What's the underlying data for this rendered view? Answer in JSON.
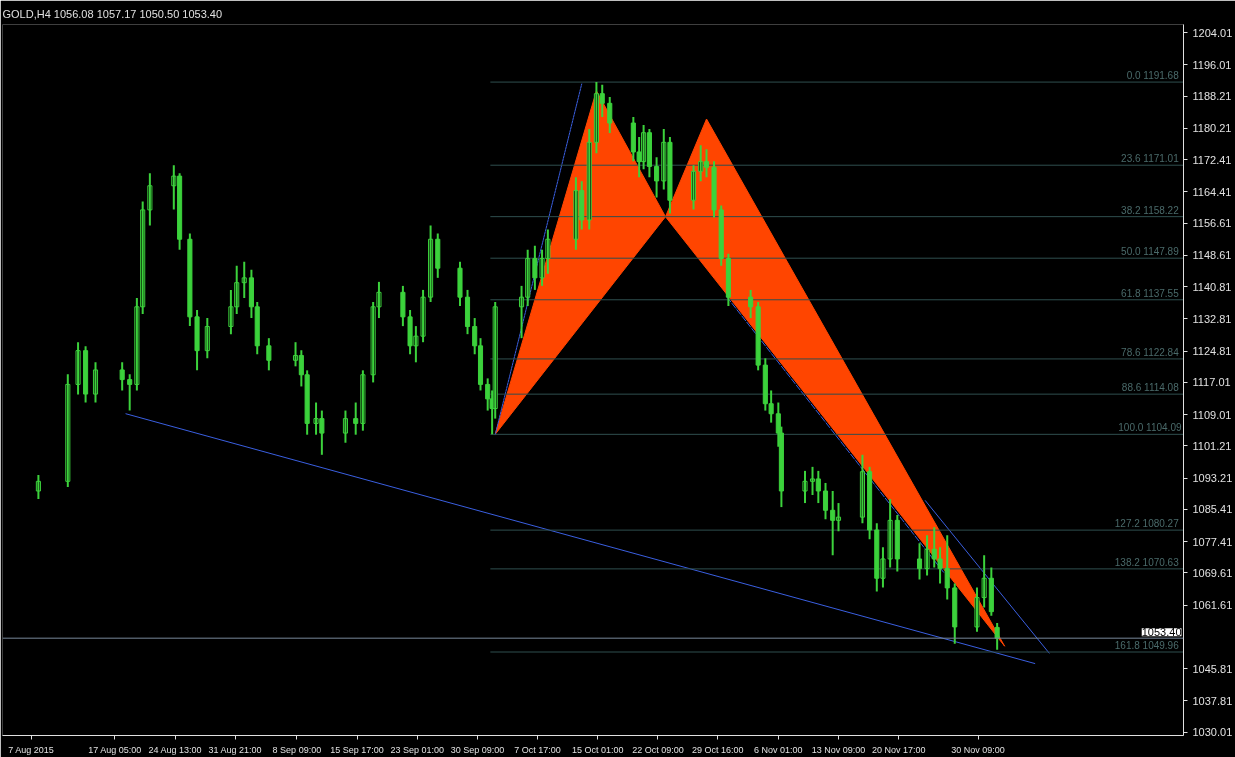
{
  "chart_data": {
    "type": "candlestick",
    "title": "GOLD,H4  1056.08 1057.17 1050.50 1053.40",
    "xlim": [
      "2015-08-03T12:00",
      "2015-12-25T10:00"
    ],
    "ylim": [
      1029.2,
      1206
    ],
    "xticks": [
      {
        "value": "2015-08-07T00:00",
        "label": "7 Aug 2015"
      },
      {
        "value": "2015-08-17T05:00",
        "label": "17 Aug 05:00"
      },
      {
        "value": "2015-08-24T13:00",
        "label": "24 Aug 13:00"
      },
      {
        "value": "2015-08-31T21:00",
        "label": "31 Aug 21:00"
      },
      {
        "value": "2015-09-08T09:00",
        "label": "8 Sep 09:00"
      },
      {
        "value": "2015-09-15T17:00",
        "label": "15 Sep 17:00"
      },
      {
        "value": "2015-09-23T01:00",
        "label": "23 Sep 01:00"
      },
      {
        "value": "2015-09-30T09:00",
        "label": "30 Sep 09:00"
      },
      {
        "value": "2015-10-07T17:00",
        "label": "7 Oct 17:00"
      },
      {
        "value": "2015-10-15T01:00",
        "label": "15 Oct 01:00"
      },
      {
        "value": "2015-10-22T09:00",
        "label": "22 Oct 09:00"
      },
      {
        "value": "2015-10-29T16:00",
        "label": "29 Oct 16:00"
      },
      {
        "value": "2015-11-06T01:00",
        "label": "6 Nov 01:00"
      },
      {
        "value": "2015-11-13T09:00",
        "label": "13 Nov 09:00"
      },
      {
        "value": "2015-11-20T17:00",
        "label": "20 Nov 17:00"
      },
      {
        "value": "2015-11-30T09:00",
        "label": "30 Nov 09:00"
      }
    ],
    "yticks": [
      1030.01,
      1037.81,
      1045.81,
      1061.61,
      1069.61,
      1077.41,
      1085.41,
      1093.21,
      1101.21,
      1109.01,
      1117.01,
      1124.81,
      1132.81,
      1140.81,
      1148.61,
      1156.61,
      1164.41,
      1172.41,
      1180.21,
      1188.21,
      1196.01,
      1204.01
    ],
    "grid": false,
    "color": "#3cd23c",
    "ref_lines": [
      {
        "axis": "y",
        "value": 1053.4,
        "label": "1053.40",
        "color": "#778899"
      }
    ],
    "x": [
      "2015-08-07T21:00",
      "2015-08-11T11:00",
      "2015-08-12T17:00",
      "2015-08-13T15:00",
      "2015-08-14T20:00",
      "2015-08-18T02:00",
      "2015-08-19T00:00",
      "2015-08-19T21:00",
      "2015-08-20T14:00",
      "2015-08-21T11:00",
      "2015-08-24T09:00",
      "2015-08-25T02:00",
      "2015-08-26T08:00",
      "2015-08-27T05:00",
      "2015-08-28T11:00",
      "2015-08-31T08:00",
      "2015-09-01T01:00",
      "2015-09-01T23:00",
      "2015-09-02T20:00",
      "2015-09-03T13:00",
      "2015-09-04T23:00",
      "2015-09-08T05:00",
      "2015-09-08T22:00",
      "2015-09-09T15:00",
      "2015-09-10T17:00",
      "2015-09-11T10:00",
      "2015-09-14T07:00",
      "2015-09-15T13:00",
      "2015-09-16T10:00",
      "2015-09-17T16:00",
      "2015-09-18T09:00",
      "2015-09-21T07:00",
      "2015-09-22T04:00",
      "2015-09-22T21:00",
      "2015-09-23T18:00",
      "2015-09-24T16:00",
      "2015-09-25T13:00",
      "2015-09-28T06:00",
      "2015-09-29T04:00",
      "2015-09-30T01:00",
      "2015-09-30T18:00",
      "2015-10-01T15:00",
      "2015-10-02T04:00",
      "2015-10-02T13:00",
      "2015-10-05T18:00",
      "2015-10-06T12:00",
      "2015-10-07T09:00",
      "2015-10-08T06:00",
      "2015-10-08T23:00",
      "2015-10-12T09:00",
      "2015-10-13T02:00",
      "2015-10-14T00:00",
      "2015-10-14T21:00",
      "2015-10-15T14:00",
      "2015-10-16T12:00",
      "2015-10-19T09:00",
      "2015-10-20T02:00",
      "2015-10-20T15:00",
      "2015-10-21T08:00",
      "2015-10-22T05:00",
      "2015-10-23T02:00",
      "2015-10-23T20:00",
      "2015-10-26T17:00",
      "2015-10-27T14:00",
      "2015-10-28T07:00",
      "2015-10-29T05:00",
      "2015-10-30T02:00",
      "2015-10-30T23:00",
      "2015-11-02T16:00",
      "2015-11-03T14:00",
      "2015-11-04T11:00",
      "2015-11-05T04:00",
      "2015-11-06T01:00",
      "2015-11-06T10:00",
      "2015-11-09T07:00",
      "2015-11-10T05:00",
      "2015-11-10T22:00",
      "2015-11-11T19:00",
      "2015-11-12T16:00",
      "2015-11-13T09:00",
      "2015-11-16T07:00",
      "2015-11-17T04:00",
      "2015-11-18T01:00",
      "2015-11-18T19:00",
      "2015-11-19T16:00",
      "2015-11-20T13:00",
      "2015-11-23T06:00",
      "2015-11-24T04:00",
      "2015-11-25T01:00",
      "2015-11-25T18:00",
      "2015-11-26T15:00",
      "2015-11-27T13:00",
      "2015-11-30T06:00",
      "2015-12-01T03:00",
      "2015-12-02T00:00",
      "2015-12-02T17:00"
    ],
    "ohlc": [
      [
        1090,
        1094,
        1088,
        1092.4
      ],
      [
        1092.4,
        1119,
        1091,
        1116.5
      ],
      [
        1116.5,
        1127,
        1114,
        1124.9
      ],
      [
        1124.9,
        1126,
        1112,
        1114.1
      ],
      [
        1114.1,
        1122,
        1112,
        1120.1
      ],
      [
        1120.1,
        1122,
        1115,
        1117.7
      ],
      [
        1117.7,
        1119,
        1110,
        1116.5
      ],
      [
        1116.5,
        1138,
        1115,
        1135.8
      ],
      [
        1135.8,
        1162,
        1134,
        1159.9
      ],
      [
        1159.9,
        1169,
        1156,
        1165.9
      ],
      [
        1165.9,
        1171,
        1160,
        1168.3
      ],
      [
        1168.3,
        1169,
        1150,
        1152.6
      ],
      [
        1152.6,
        1154,
        1131,
        1133.3
      ],
      [
        1133.3,
        1135,
        1120,
        1124.9
      ],
      [
        1124.9,
        1133,
        1123,
        1130.9
      ],
      [
        1130.9,
        1140,
        1129,
        1135.8
      ],
      [
        1135.8,
        1146,
        1134,
        1141.8
      ],
      [
        1141.8,
        1147,
        1138,
        1143.0
      ],
      [
        1143.0,
        1145,
        1133,
        1135.8
      ],
      [
        1135.8,
        1137,
        1124,
        1126.1
      ],
      [
        1126.1,
        1128,
        1120,
        1122.5
      ],
      [
        1122.5,
        1127,
        1121,
        1123.7
      ],
      [
        1123.7,
        1125,
        1116,
        1118.9
      ],
      [
        1118.9,
        1120,
        1104,
        1106.8
      ],
      [
        1106.8,
        1112,
        1104,
        1108.0
      ],
      [
        1108.0,
        1110,
        1099,
        1104.4
      ],
      [
        1104.4,
        1110,
        1102,
        1108.0
      ],
      [
        1108.0,
        1112,
        1104,
        1106.8
      ],
      [
        1106.8,
        1120,
        1105,
        1118.9
      ],
      [
        1118.9,
        1137,
        1117,
        1135.8
      ],
      [
        1135.8,
        1142,
        1133,
        1139.4
      ],
      [
        1139.4,
        1141,
        1131,
        1133.3
      ],
      [
        1133.3,
        1135,
        1124,
        1126.1
      ],
      [
        1126.1,
        1131,
        1122,
        1128.5
      ],
      [
        1128.5,
        1140,
        1127,
        1138.2
      ],
      [
        1138.2,
        1156,
        1137,
        1152.6
      ],
      [
        1152.6,
        1154,
        1143,
        1145.4
      ],
      [
        1145.4,
        1147,
        1136,
        1138.2
      ],
      [
        1138.2,
        1140,
        1129,
        1130.9
      ],
      [
        1130.9,
        1133,
        1124,
        1126.1
      ],
      [
        1126.1,
        1128,
        1115,
        1116.5
      ],
      [
        1116.5,
        1118,
        1110,
        1112.9
      ],
      [
        1112.9,
        1115,
        1104.1,
        1110.5
      ],
      [
        1110.5,
        1137,
        1108,
        1135.8
      ],
      [
        1135.8,
        1141,
        1128,
        1138.2
      ],
      [
        1138.2,
        1150,
        1136,
        1147.8
      ],
      [
        1147.8,
        1151,
        1140,
        1143.0
      ],
      [
        1143.0,
        1150,
        1141,
        1147.8
      ],
      [
        1147.8,
        1155,
        1144,
        1152.6
      ],
      [
        1152.6,
        1168,
        1150,
        1164.7
      ],
      [
        1164.7,
        1167,
        1155,
        1157.4
      ],
      [
        1157.4,
        1180,
        1155,
        1176.7
      ],
      [
        1176.7,
        1191.7,
        1174,
        1188.8
      ],
      [
        1188.8,
        1191,
        1183,
        1186.4
      ],
      [
        1186.4,
        1188,
        1179,
        1181.5
      ],
      [
        1181.5,
        1183,
        1172,
        1174.3
      ],
      [
        1174.3,
        1178,
        1168,
        1171.9
      ],
      [
        1171.9,
        1181,
        1170,
        1179.1
      ],
      [
        1179.1,
        1180,
        1168,
        1170.7
      ],
      [
        1170.7,
        1173,
        1163,
        1167.1
      ],
      [
        1167.1,
        1180,
        1165,
        1176.7
      ],
      [
        1176.7,
        1178,
        1159,
        1162.3
      ],
      [
        1162.3,
        1171,
        1160,
        1169.5
      ],
      [
        1169.5,
        1176,
        1167,
        1171.9
      ],
      [
        1171.9,
        1175,
        1168,
        1170.5
      ],
      [
        1170.5,
        1172,
        1158,
        1159.9
      ],
      [
        1159.9,
        1161,
        1146,
        1147.8
      ],
      [
        1147.8,
        1149,
        1136,
        1138.2
      ],
      [
        1138.2,
        1140,
        1133,
        1135.8
      ],
      [
        1135.8,
        1137,
        1120,
        1121.3
      ],
      [
        1121.3,
        1123,
        1110,
        1111.7
      ],
      [
        1111.7,
        1115,
        1107,
        1109.2
      ],
      [
        1109.2,
        1112,
        1101,
        1104.4
      ],
      [
        1104.4,
        1106,
        1086,
        1090.0
      ],
      [
        1090.0,
        1095,
        1087,
        1092.4
      ],
      [
        1092.4,
        1096,
        1089,
        1093.0
      ],
      [
        1093.0,
        1095,
        1087,
        1090.0
      ],
      [
        1090.0,
        1092,
        1083,
        1085.2
      ],
      [
        1085.2,
        1090,
        1074,
        1082.7
      ],
      [
        1082.7,
        1087,
        1080,
        1083.5
      ],
      [
        1083.5,
        1099,
        1082,
        1094.8
      ],
      [
        1094.8,
        1096,
        1078,
        1080.3
      ],
      [
        1080.3,
        1082,
        1065,
        1068.3
      ],
      [
        1068.3,
        1076,
        1066,
        1073.1
      ],
      [
        1073.1,
        1088,
        1071,
        1082.7
      ],
      [
        1082.7,
        1084,
        1070,
        1073.1
      ],
      [
        1073.1,
        1077,
        1068,
        1070.7
      ],
      [
        1070.7,
        1079,
        1069,
        1075.5
      ],
      [
        1075.5,
        1081,
        1071,
        1073.1
      ],
      [
        1073.1,
        1076,
        1067,
        1070.7
      ],
      [
        1070.7,
        1079,
        1063,
        1065.9
      ],
      [
        1065.9,
        1067,
        1052,
        1056.2
      ],
      [
        1056.2,
        1066,
        1055,
        1063.5
      ],
      [
        1063.5,
        1074,
        1061,
        1068.3
      ],
      [
        1068.3,
        1071,
        1059,
        1060.0
      ],
      [
        1056.08,
        1057.17,
        1050.5,
        1053.4
      ]
    ],
    "series": [
      {
        "type": "area",
        "color": "#ff4500",
        "x": [
          "2015-10-02T13:00",
          "2015-10-14T21:00",
          "2015-10-23T07:00"
        ],
        "values": [
          1104.1,
          1189.5,
          1158.2
        ]
      },
      {
        "type": "area",
        "color": "#ff4500",
        "x": [
          "2015-10-23T07:00",
          "2015-10-28T07:00",
          "2015-12-03T15:00"
        ],
        "values": [
          1158.2,
          1182.5,
          1051.4
        ]
      },
      {
        "type": "line",
        "color": "#3a5fe0",
        "line_style": "solid",
        "x": [
          "2015-08-18T13:00",
          "2015-12-07T07:00"
        ],
        "values": [
          1109.2,
          1047.1
        ]
      },
      {
        "type": "line",
        "color": "#3a5fe0",
        "line_style": "solid",
        "x": [
          "2015-11-23T23:00",
          "2015-12-09T01:00"
        ],
        "values": [
          1087.6,
          1049.7
        ]
      },
      {
        "type": "line",
        "color": "#3a5fe0",
        "line_style": "dotted",
        "x": [
          "2015-10-02T13:00",
          "2015-10-13T02:00"
        ],
        "values": [
          1104.0,
          1191.2
        ]
      },
      {
        "type": "line",
        "color": "#3a5fe0",
        "line_style": "dashed",
        "x": [
          "2015-10-30T19:00",
          "2015-11-26T07:00"
        ],
        "values": [
          1138.2,
          1069.5
        ]
      },
      {
        "type": "line",
        "color": "#2f4f4f",
        "x": [
          "2015-10-02T00:00",
          "2015-12-25T10:00"
        ],
        "values": [
          1191.68,
          1191.68
        ]
      },
      {
        "type": "line",
        "color": "#2f4f4f",
        "x": [
          "2015-10-02T00:00",
          "2015-12-25T10:00"
        ],
        "values": [
          1171.01,
          1171.01
        ]
      },
      {
        "type": "line",
        "color": "#2f4f4f",
        "x": [
          "2015-10-02T00:00",
          "2015-12-25T10:00"
        ],
        "values": [
          1158.22,
          1158.22
        ]
      },
      {
        "type": "line",
        "color": "#2f4f4f",
        "x": [
          "2015-10-02T00:00",
          "2015-12-25T10:00"
        ],
        "values": [
          1147.89,
          1147.89
        ]
      },
      {
        "type": "line",
        "color": "#2f4f4f",
        "x": [
          "2015-10-02T00:00",
          "2015-12-25T10:00"
        ],
        "values": [
          1137.55,
          1137.55
        ]
      },
      {
        "type": "line",
        "color": "#2f4f4f",
        "x": [
          "2015-10-02T00:00",
          "2015-12-25T10:00"
        ],
        "values": [
          1122.84,
          1122.84
        ]
      },
      {
        "type": "line",
        "color": "#2f4f4f",
        "x": [
          "2015-10-02T00:00",
          "2015-12-25T10:00"
        ],
        "values": [
          1114.08,
          1114.08
        ]
      },
      {
        "type": "line",
        "color": "#2f4f4f",
        "x": [
          "2015-10-02T00:00",
          "2015-12-25T10:00"
        ],
        "values": [
          1104.09,
          1104.09
        ]
      },
      {
        "type": "line",
        "color": "#2f4f4f",
        "x": [
          "2015-10-02T00:00",
          "2015-12-25T10:00"
        ],
        "values": [
          1080.27,
          1080.27
        ]
      },
      {
        "type": "line",
        "color": "#2f4f4f",
        "x": [
          "2015-10-02T00:00",
          "2015-12-25T10:00"
        ],
        "values": [
          1070.63,
          1070.63
        ]
      },
      {
        "type": "line",
        "color": "#2f4f4f",
        "x": [
          "2015-10-02T00:00",
          "2015-12-25T10:00"
        ],
        "values": [
          1049.96,
          1049.96
        ]
      }
    ],
    "annotations": [
      {
        "text": "0.0  1191.68",
        "x": "2015-12-25T10:00",
        "y": 1191.68
      },
      {
        "text": "23.6  1171.01",
        "x": "2015-12-25T10:00",
        "y": 1171.01
      },
      {
        "text": "38.2  1158.22",
        "x": "2015-12-25T10:00",
        "y": 1158.22
      },
      {
        "text": "50.0  1147.89",
        "x": "2015-12-25T10:00",
        "y": 1147.89
      },
      {
        "text": "61.8  1137.55",
        "x": "2015-12-25T10:00",
        "y": 1137.55
      },
      {
        "text": "78.6  1122.84",
        "x": "2015-12-25T10:00",
        "y": 1122.84
      },
      {
        "text": "88.6  1114.08",
        "x": "2015-12-25T10:00",
        "y": 1114.08
      },
      {
        "text": "100.0 1104.09",
        "x": "2015-12-25T10:00",
        "y": 1104.09
      },
      {
        "text": "127.2  1080.27",
        "x": "2015-12-25T10:00",
        "y": 1080.27
      },
      {
        "text": "138.2  1070.63",
        "x": "2015-12-25T10:00",
        "y": 1070.63
      },
      {
        "text": "161.8  1049.96",
        "x": "2015-12-25T10:00",
        "y": 1049.96
      }
    ]
  }
}
